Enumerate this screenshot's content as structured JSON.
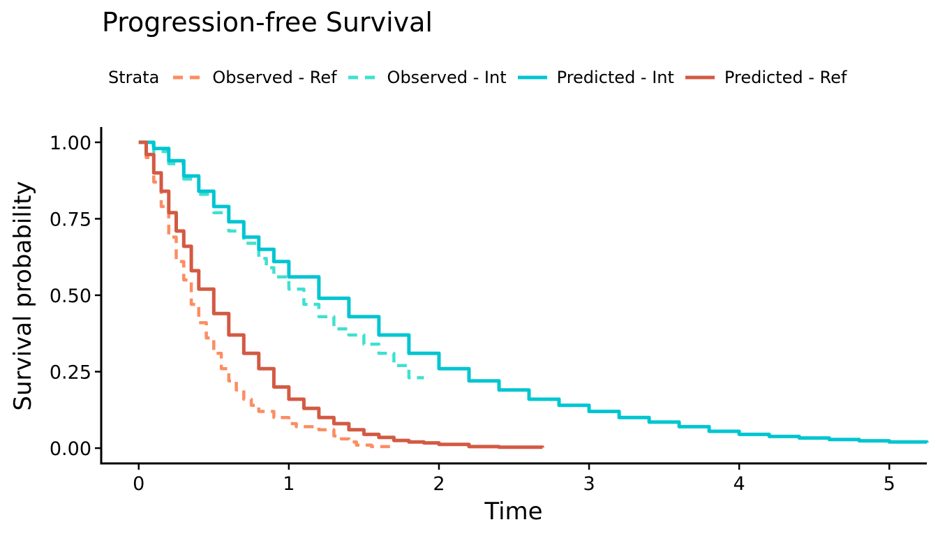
{
  "chart_data": {
    "type": "line",
    "title": "Progression-free Survival",
    "xlabel": "Time",
    "ylabel": "Survival probability",
    "xlim": [
      -0.25,
      5.25
    ],
    "ylim": [
      -0.05,
      1.05
    ],
    "xticks": [
      0,
      1,
      2,
      3,
      4,
      5
    ],
    "xtick_labels": [
      "0",
      "1",
      "2",
      "3",
      "4",
      "5"
    ],
    "yticks": [
      0,
      0.25,
      0.5,
      0.75,
      1.0
    ],
    "ytick_labels": [
      "0.00",
      "0.25",
      "0.50",
      "0.75",
      "1.00"
    ],
    "grid": false,
    "legend": {
      "title": "Strata",
      "position": "top"
    },
    "series": [
      {
        "name": "Observed - Ref",
        "color": "#fc8d62",
        "dash": true,
        "x": [
          0,
          0.05,
          0.1,
          0.15,
          0.2,
          0.25,
          0.3,
          0.35,
          0.4,
          0.45,
          0.5,
          0.55,
          0.6,
          0.65,
          0.7,
          0.75,
          0.8,
          0.9,
          1.0,
          1.05,
          1.15,
          1.2,
          1.3,
          1.35,
          1.4,
          1.45,
          1.5,
          1.55,
          1.65,
          1.7
        ],
        "y": [
          1.0,
          0.95,
          0.87,
          0.79,
          0.69,
          0.61,
          0.55,
          0.47,
          0.41,
          0.36,
          0.31,
          0.26,
          0.22,
          0.19,
          0.16,
          0.14,
          0.12,
          0.1,
          0.08,
          0.07,
          0.07,
          0.06,
          0.04,
          0.03,
          0.02,
          0.01,
          0.01,
          0.005,
          0.005,
          0.005
        ]
      },
      {
        "name": "Observed - Int",
        "color": "#40e0d0",
        "dash": true,
        "x": [
          0,
          0.05,
          0.1,
          0.2,
          0.3,
          0.4,
          0.5,
          0.6,
          0.7,
          0.8,
          0.85,
          0.9,
          1.0,
          1.1,
          1.2,
          1.3,
          1.4,
          1.5,
          1.6,
          1.7,
          1.8,
          1.9
        ],
        "y": [
          1.0,
          0.99,
          0.97,
          0.93,
          0.88,
          0.83,
          0.77,
          0.71,
          0.67,
          0.62,
          0.59,
          0.56,
          0.52,
          0.47,
          0.43,
          0.39,
          0.37,
          0.34,
          0.31,
          0.27,
          0.23,
          0.23
        ]
      },
      {
        "name": "Predicted - Int",
        "color": "#00c5d1",
        "dash": false,
        "x": [
          0,
          0.1,
          0.2,
          0.3,
          0.4,
          0.5,
          0.6,
          0.7,
          0.8,
          0.9,
          1.0,
          1.2,
          1.4,
          1.6,
          1.8,
          2.0,
          2.2,
          2.4,
          2.6,
          2.8,
          3.0,
          3.2,
          3.4,
          3.6,
          3.8,
          4.0,
          4.2,
          4.4,
          4.6,
          4.8,
          5.0,
          5.25
        ],
        "y": [
          1.0,
          0.98,
          0.94,
          0.89,
          0.84,
          0.79,
          0.74,
          0.69,
          0.65,
          0.61,
          0.56,
          0.49,
          0.43,
          0.37,
          0.31,
          0.26,
          0.22,
          0.19,
          0.16,
          0.14,
          0.12,
          0.1,
          0.085,
          0.07,
          0.055,
          0.045,
          0.038,
          0.033,
          0.028,
          0.024,
          0.02,
          0.018
        ]
      },
      {
        "name": "Predicted - Ref",
        "color": "#d35a43",
        "dash": false,
        "x": [
          0,
          0.05,
          0.1,
          0.15,
          0.2,
          0.25,
          0.3,
          0.35,
          0.4,
          0.5,
          0.6,
          0.7,
          0.8,
          0.9,
          1.0,
          1.1,
          1.2,
          1.3,
          1.4,
          1.5,
          1.6,
          1.7,
          1.8,
          1.9,
          2.0,
          2.2,
          2.4,
          2.69
        ],
        "y": [
          1.0,
          0.96,
          0.9,
          0.84,
          0.77,
          0.71,
          0.66,
          0.58,
          0.52,
          0.44,
          0.37,
          0.31,
          0.26,
          0.2,
          0.16,
          0.13,
          0.1,
          0.08,
          0.06,
          0.045,
          0.035,
          0.025,
          0.02,
          0.017,
          0.012,
          0.005,
          0.003,
          0.002
        ]
      }
    ]
  }
}
